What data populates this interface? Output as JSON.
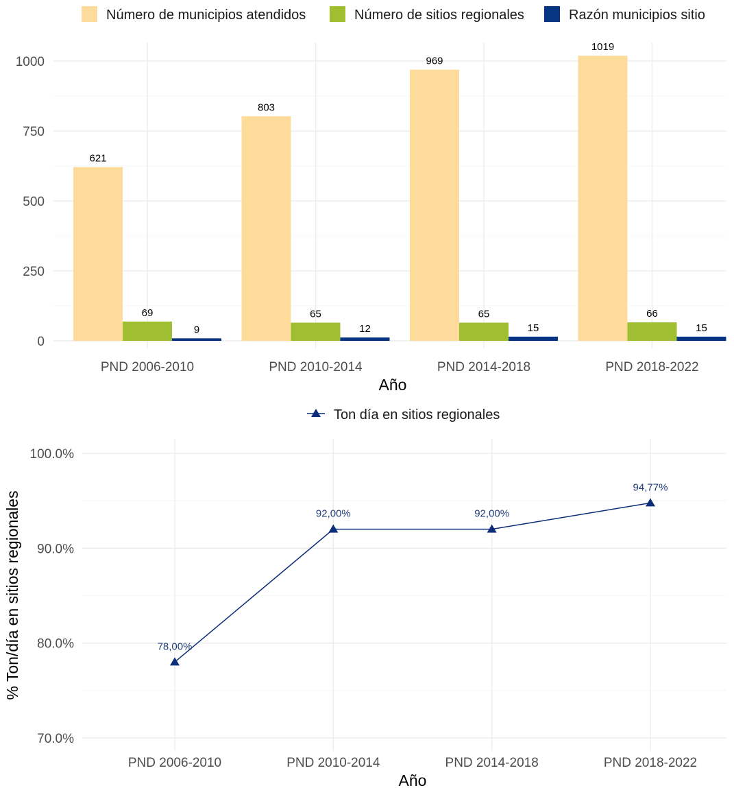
{
  "chart_data": [
    {
      "type": "bar",
      "categories": [
        "PND 2006-2010",
        "PND 2010-2014",
        "PND 2014-2018",
        "PND 2018-2022"
      ],
      "series": [
        {
          "name": "Número de municipios atendidos",
          "color": "#FDDC9B",
          "values": [
            621,
            803,
            969,
            1019
          ]
        },
        {
          "name": "Número de sitios regionales",
          "color": "#A0BE31",
          "values": [
            69,
            65,
            65,
            66
          ]
        },
        {
          "name": "Razón municipios sitio",
          "color": "#083484",
          "values": [
            9,
            12,
            15,
            15
          ]
        }
      ],
      "data_labels": [
        [
          "621",
          "803",
          "969",
          "1019"
        ],
        [
          "69",
          "65",
          "65",
          "66"
        ],
        [
          "9",
          "12",
          "15",
          "15"
        ]
      ],
      "xlabel": "Año",
      "ylabel": "",
      "ylim": [
        0,
        1040
      ],
      "yticks": [
        0,
        250,
        500,
        750,
        1000
      ],
      "ytick_labels": [
        "0",
        "250",
        "500",
        "750",
        "1000"
      ],
      "grid": true,
      "legend_position": "top"
    },
    {
      "type": "line",
      "categories": [
        "PND 2006-2010",
        "PND 2010-2014",
        "PND 2014-2018",
        "PND 2018-2022"
      ],
      "series": [
        {
          "name": "Ton día en sitios regionales",
          "color": "#0B2D7A",
          "marker": "triangle",
          "values": [
            78.0,
            92.0,
            92.0,
            94.77
          ]
        }
      ],
      "data_labels": [
        "78,00%",
        "92,00%",
        "92,00%",
        "94,77%"
      ],
      "xlabel": "Año",
      "ylabel": "% Ton/día en sitios regionales",
      "ylim": [
        70,
        100
      ],
      "yticks": [
        70,
        80,
        90,
        100
      ],
      "ytick_labels": [
        "70.0%",
        "80.0%",
        "90.0%",
        "100.0%"
      ],
      "grid": true,
      "legend_position": "top"
    }
  ]
}
